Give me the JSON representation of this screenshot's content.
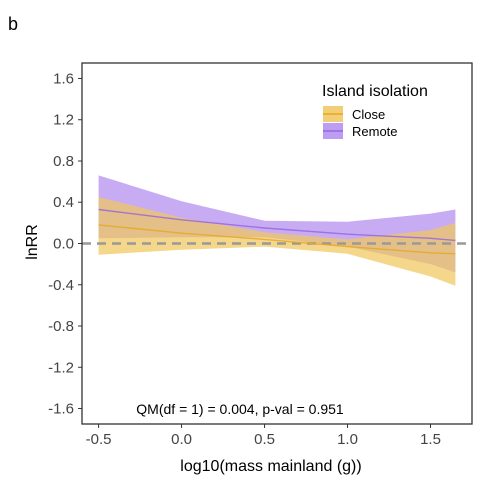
{
  "panel_tag": "b",
  "colors": {
    "close": "#E5A822",
    "close_band": "#F0C75E",
    "remote": "#9966DD",
    "remote_band": "#B28CF0",
    "reference": "#999999",
    "axis": "#333333"
  },
  "chart_data": {
    "type": "line",
    "xlabel": "log10(mass mainland (g))",
    "ylabel": "lnRR",
    "xlim": [
      -0.6,
      1.75
    ],
    "ylim": [
      -1.75,
      1.75
    ],
    "xticks": [
      "-0.5",
      "0.0",
      "0.5",
      "1.0",
      "1.5"
    ],
    "yticks": [
      "1.6",
      "1.2",
      "0.8",
      "0.4",
      "0.0",
      "-0.4",
      "-0.8",
      "-1.2",
      "-1.6"
    ],
    "grid": false,
    "reference_line": 0.0,
    "legend": {
      "title": "Island isolation",
      "position": "top-right",
      "entries": [
        "Close",
        "Remote"
      ]
    },
    "annotation": "QM(df = 1) = 0.004, p-val = 0.951",
    "series": [
      {
        "name": "Close",
        "x": [
          -0.5,
          0.0,
          0.5,
          1.0,
          1.5,
          1.65
        ],
        "y": [
          0.18,
          0.1,
          0.04,
          -0.03,
          -0.09,
          -0.1
        ],
        "lower": [
          -0.11,
          -0.06,
          -0.03,
          -0.1,
          -0.32,
          -0.41
        ],
        "upper": [
          0.45,
          0.25,
          0.11,
          0.04,
          0.13,
          0.2
        ]
      },
      {
        "name": "Remote",
        "x": [
          -0.5,
          0.0,
          0.5,
          1.0,
          1.5,
          1.65
        ],
        "y": [
          0.33,
          0.23,
          0.15,
          0.09,
          0.05,
          0.03
        ],
        "lower": [
          0.05,
          0.06,
          0.06,
          -0.03,
          -0.2,
          -0.28
        ],
        "upper": [
          0.66,
          0.41,
          0.22,
          0.21,
          0.29,
          0.33
        ]
      }
    ]
  }
}
